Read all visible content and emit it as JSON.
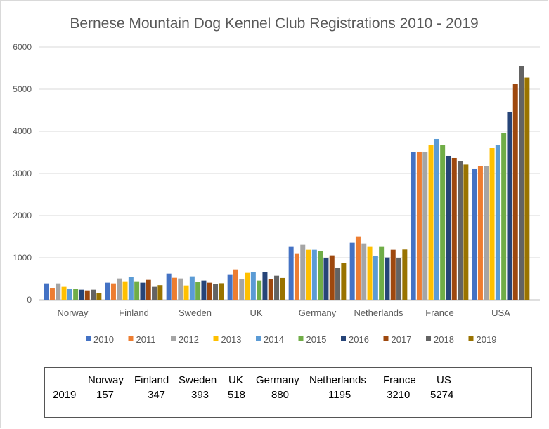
{
  "chart_data": {
    "type": "bar",
    "title": "Bernese Mountain Dog Kennel Club Registrations 2010 - 2019",
    "xlabel": "",
    "ylabel": "",
    "ylim": [
      0,
      6000
    ],
    "yticks": [
      0,
      1000,
      2000,
      3000,
      4000,
      5000,
      6000
    ],
    "grid": true,
    "legend_position": "bottom",
    "categories": [
      "Norway",
      "Finland",
      "Sweden",
      "UK",
      "Germany",
      "Netherlands",
      "France",
      "USA"
    ],
    "series": [
      {
        "name": "2010",
        "color": "#4472C4",
        "values": [
          389,
          406,
          622,
          606,
          1256,
          1356,
          3500,
          3117
        ]
      },
      {
        "name": "2011",
        "color": "#ED7D31",
        "values": [
          283,
          389,
          522,
          722,
          1089,
          1506,
          3517,
          3167
        ]
      },
      {
        "name": "2012",
        "color": "#A5A5A5",
        "values": [
          389,
          506,
          506,
          489,
          1306,
          1339,
          3500,
          3167
        ]
      },
      {
        "name": "2013",
        "color": "#FFC000",
        "values": [
          306,
          439,
          339,
          639,
          1189,
          1256,
          3667,
          3600
        ]
      },
      {
        "name": "2014",
        "color": "#5B9BD5",
        "values": [
          267,
          539,
          556,
          656,
          1189,
          1039,
          3817,
          3667
        ]
      },
      {
        "name": "2015",
        "color": "#70AD47",
        "values": [
          256,
          439,
          422,
          456,
          1156,
          1256,
          3683,
          3967
        ]
      },
      {
        "name": "2016",
        "color": "#264478",
        "values": [
          239,
          406,
          456,
          656,
          989,
          1006,
          3417,
          4467
        ]
      },
      {
        "name": "2017",
        "color": "#9E480E",
        "values": [
          222,
          472,
          406,
          489,
          1056,
          1189,
          3367,
          5117
        ]
      },
      {
        "name": "2018",
        "color": "#636363",
        "values": [
          239,
          306,
          372,
          572,
          767,
          989,
          3283,
          5550
        ]
      },
      {
        "name": "2019",
        "color": "#997300",
        "values": [
          157,
          347,
          393,
          518,
          880,
          1195,
          3210,
          5274
        ]
      }
    ]
  },
  "table": {
    "row_label": "2019",
    "headers": [
      "Norway",
      "Finland",
      "Sweden",
      "UK",
      "Germany",
      "Netherlands",
      "France",
      "US"
    ],
    "values": [
      "157",
      "347",
      "393",
      "518",
      "880",
      "1195",
      "3210",
      "5274"
    ]
  }
}
